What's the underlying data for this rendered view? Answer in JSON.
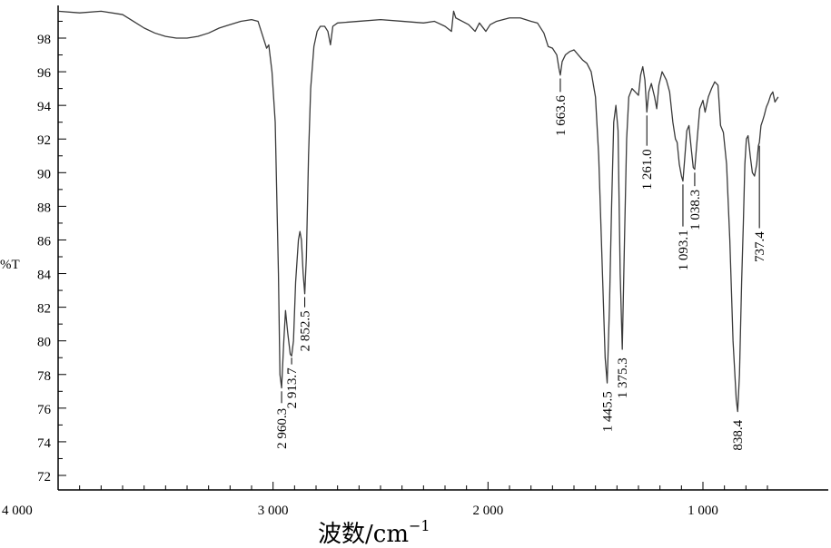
{
  "chart_data": {
    "type": "line",
    "xlabel": "波数/cm",
    "xlabel_exponent": "−1",
    "ylabel": "%T",
    "xlim": [
      4000,
      600
    ],
    "ylim": [
      71.5,
      100
    ],
    "x_reversed": true,
    "x_ticks": [
      {
        "value": 4000,
        "label": "4 000"
      },
      {
        "value": 3000,
        "label": "3 000"
      },
      {
        "value": 2000,
        "label": "2 000"
      },
      {
        "value": 1000,
        "label": "1 000"
      }
    ],
    "y_ticks": [
      {
        "value": 98,
        "label": "98"
      },
      {
        "value": 96,
        "label": "96"
      },
      {
        "value": 94,
        "label": "94"
      },
      {
        "value": 92,
        "label": "92"
      },
      {
        "value": 90,
        "label": "90"
      },
      {
        "value": 88,
        "label": "88"
      },
      {
        "value": 86,
        "label": "86"
      },
      {
        "value": 84,
        "label": "84"
      },
      {
        "value": 82,
        "label": "82"
      },
      {
        "value": 80,
        "label": "80"
      },
      {
        "value": 78,
        "label": "78"
      },
      {
        "value": 76,
        "label": "76"
      },
      {
        "value": 74,
        "label": "74"
      },
      {
        "value": 72,
        "label": "72"
      }
    ],
    "grid": false,
    "series": [
      {
        "points": [
          [
            4000,
            99.6
          ],
          [
            3900,
            99.5
          ],
          [
            3800,
            99.6
          ],
          [
            3700,
            99.4
          ],
          [
            3650,
            99.0
          ],
          [
            3600,
            98.6
          ],
          [
            3550,
            98.3
          ],
          [
            3500,
            98.1
          ],
          [
            3450,
            98.0
          ],
          [
            3400,
            98.0
          ],
          [
            3350,
            98.1
          ],
          [
            3300,
            98.3
          ],
          [
            3250,
            98.6
          ],
          [
            3200,
            98.8
          ],
          [
            3150,
            99.0
          ],
          [
            3100,
            99.1
          ],
          [
            3070,
            99.0
          ],
          [
            3040,
            97.8
          ],
          [
            3030,
            97.4
          ],
          [
            3020,
            97.6
          ],
          [
            3005,
            96.0
          ],
          [
            2990,
            93.0
          ],
          [
            2975,
            84.0
          ],
          [
            2968,
            78.0
          ],
          [
            2960.3,
            77.2
          ],
          [
            2950,
            80.0
          ],
          [
            2942,
            81.8
          ],
          [
            2932,
            80.5
          ],
          [
            2920,
            79.2
          ],
          [
            2913.7,
            79.1
          ],
          [
            2905,
            80.0
          ],
          [
            2895,
            83.5
          ],
          [
            2882,
            86.0
          ],
          [
            2875,
            86.5
          ],
          [
            2868,
            86.0
          ],
          [
            2860,
            84.0
          ],
          [
            2852.5,
            82.8
          ],
          [
            2845,
            85.0
          ],
          [
            2835,
            91.0
          ],
          [
            2825,
            95.0
          ],
          [
            2810,
            97.5
          ],
          [
            2795,
            98.4
          ],
          [
            2780,
            98.7
          ],
          [
            2760,
            98.7
          ],
          [
            2745,
            98.4
          ],
          [
            2733,
            97.6
          ],
          [
            2722,
            98.7
          ],
          [
            2700,
            98.9
          ],
          [
            2600,
            99.0
          ],
          [
            2500,
            99.1
          ],
          [
            2400,
            99.0
          ],
          [
            2300,
            98.9
          ],
          [
            2250,
            99.0
          ],
          [
            2200,
            98.7
          ],
          [
            2170,
            98.4
          ],
          [
            2160,
            99.6
          ],
          [
            2150,
            99.2
          ],
          [
            2120,
            99.0
          ],
          [
            2090,
            98.8
          ],
          [
            2060,
            98.4
          ],
          [
            2040,
            98.9
          ],
          [
            2010,
            98.4
          ],
          [
            1990,
            98.8
          ],
          [
            1960,
            99.0
          ],
          [
            1900,
            99.2
          ],
          [
            1850,
            99.2
          ],
          [
            1800,
            99.0
          ],
          [
            1770,
            98.9
          ],
          [
            1740,
            98.3
          ],
          [
            1720,
            97.5
          ],
          [
            1700,
            97.4
          ],
          [
            1680,
            97.0
          ],
          [
            1670,
            96.2
          ],
          [
            1663.6,
            95.8
          ],
          [
            1655,
            96.6
          ],
          [
            1640,
            97.0
          ],
          [
            1620,
            97.2
          ],
          [
            1600,
            97.3
          ],
          [
            1580,
            97.0
          ],
          [
            1560,
            96.7
          ],
          [
            1540,
            96.5
          ],
          [
            1520,
            96.0
          ],
          [
            1500,
            94.5
          ],
          [
            1485,
            91.0
          ],
          [
            1470,
            85.0
          ],
          [
            1455,
            79.0
          ],
          [
            1445.5,
            77.5
          ],
          [
            1435,
            82.0
          ],
          [
            1425,
            88.0
          ],
          [
            1415,
            93.0
          ],
          [
            1405,
            94.0
          ],
          [
            1395,
            92.5
          ],
          [
            1385,
            84.0
          ],
          [
            1375.3,
            79.5
          ],
          [
            1365,
            86.0
          ],
          [
            1355,
            92.0
          ],
          [
            1345,
            94.5
          ],
          [
            1330,
            95.0
          ],
          [
            1315,
            94.8
          ],
          [
            1300,
            94.6
          ],
          [
            1290,
            95.8
          ],
          [
            1280,
            96.3
          ],
          [
            1270,
            95.5
          ],
          [
            1261,
            93.6
          ],
          [
            1252,
            94.8
          ],
          [
            1240,
            95.3
          ],
          [
            1225,
            94.5
          ],
          [
            1215,
            93.8
          ],
          [
            1205,
            95.2
          ],
          [
            1190,
            96.0
          ],
          [
            1170,
            95.5
          ],
          [
            1155,
            94.8
          ],
          [
            1140,
            93.0
          ],
          [
            1128,
            92.0
          ],
          [
            1120,
            91.8
          ],
          [
            1110,
            90.5
          ],
          [
            1100,
            89.8
          ],
          [
            1093.1,
            89.5
          ],
          [
            1085,
            90.8
          ],
          [
            1075,
            92.5
          ],
          [
            1065,
            92.8
          ],
          [
            1055,
            91.5
          ],
          [
            1045,
            90.3
          ],
          [
            1038.3,
            90.2
          ],
          [
            1030,
            91.5
          ],
          [
            1015,
            93.8
          ],
          [
            1000,
            94.3
          ],
          [
            990,
            93.6
          ],
          [
            975,
            94.5
          ],
          [
            960,
            95.0
          ],
          [
            945,
            95.4
          ],
          [
            930,
            95.2
          ],
          [
            918,
            92.8
          ],
          [
            905,
            92.4
          ],
          [
            890,
            90.5
          ],
          [
            875,
            86.0
          ],
          [
            860,
            80.0
          ],
          [
            845,
            76.5
          ],
          [
            838.4,
            75.8
          ],
          [
            830,
            78.0
          ],
          [
            820,
            83.5
          ],
          [
            812,
            87.0
          ],
          [
            805,
            90.5
          ],
          [
            798,
            92.0
          ],
          [
            790,
            92.2
          ],
          [
            780,
            91.0
          ],
          [
            770,
            90.0
          ],
          [
            760,
            89.8
          ],
          [
            750,
            90.5
          ],
          [
            742,
            91.6
          ],
          [
            737.4,
            91.8
          ],
          [
            730,
            92.8
          ],
          [
            722,
            93.1
          ],
          [
            715,
            93.4
          ],
          [
            705,
            93.9
          ],
          [
            695,
            94.2
          ],
          [
            685,
            94.6
          ],
          [
            675,
            94.8
          ],
          [
            665,
            94.2
          ],
          [
            650,
            94.5
          ]
        ]
      }
    ],
    "annotations": [
      {
        "x": 2960.3,
        "label": "2 960.3",
        "tip": 77.0,
        "line_bottom": 76.3,
        "text_end": 76.0
      },
      {
        "x": 2913.7,
        "label": "2 913.7",
        "tip": 79.0,
        "line_bottom": 78.6,
        "text_end": 78.4
      },
      {
        "x": 2852.5,
        "label": "2 852.5",
        "tip": 82.6,
        "line_bottom": 82.0,
        "text_end": 81.8
      },
      {
        "x": 1663.6,
        "label": "1 663.6",
        "tip": 95.6,
        "line_bottom": 94.8,
        "text_end": 94.6
      },
      {
        "x": 1445.5,
        "label": "1 445.5",
        "tip": 77.4,
        "line_bottom": 77.4,
        "text_end": 77.0
      },
      {
        "x": 1375.3,
        "label": "1 375.3",
        "tip": 79.3,
        "line_bottom": 79.3,
        "text_end": 79.0
      },
      {
        "x": 1261.0,
        "label": "1 261.0",
        "tip": 93.4,
        "line_bottom": 91.6,
        "text_end": 91.4
      },
      {
        "x": 1093.1,
        "label": "1 093.1",
        "tip": 89.3,
        "line_bottom": 86.8,
        "text_end": 86.6
      },
      {
        "x": 1038.3,
        "label": "1 038.3",
        "tip": 90.0,
        "line_bottom": 89.2,
        "text_end": 89.0
      },
      {
        "x": 838.4,
        "label": "838.4",
        "tip": 75.6,
        "line_bottom": 75.6,
        "text_end": 75.3
      },
      {
        "x": 737.4,
        "label": "737.4",
        "tip": 91.6,
        "line_bottom": 86.7,
        "text_end": 86.5
      }
    ],
    "colors": {
      "axis": "#000000",
      "line": "#3a3a3a"
    }
  }
}
